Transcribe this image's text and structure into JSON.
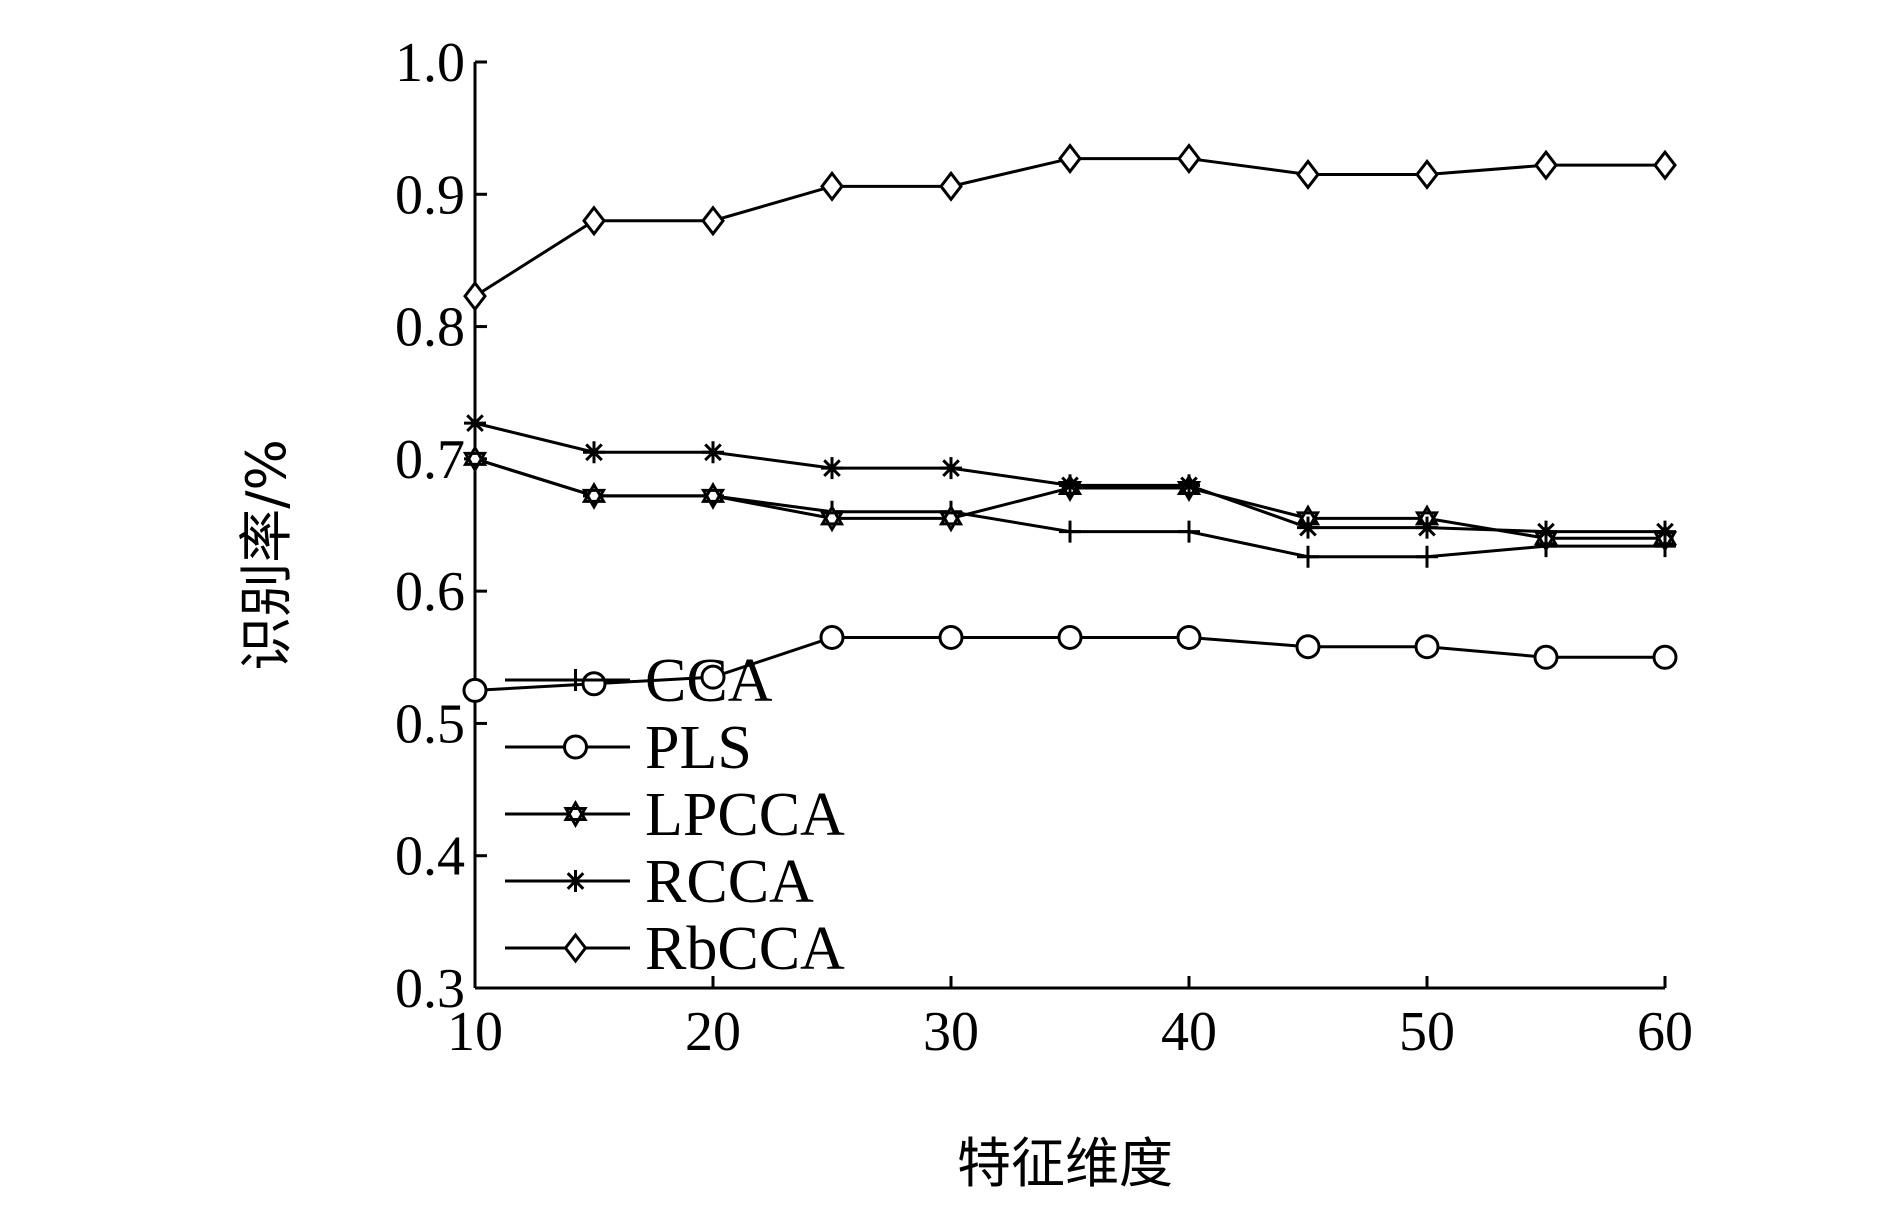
{
  "chart_data": {
    "type": "line",
    "title": "",
    "xlabel": "特征维度",
    "ylabel": "识别率/%",
    "x": [
      10,
      15,
      20,
      25,
      30,
      35,
      40,
      45,
      50,
      55,
      60
    ],
    "xlim": [
      10,
      60
    ],
    "ylim": [
      0.3,
      1.0
    ],
    "xticks": [
      10,
      20,
      30,
      40,
      50,
      60
    ],
    "xtick_labels": [
      "10",
      "20",
      "30",
      "40",
      "50",
      "60"
    ],
    "yticks": [
      0.3,
      0.4,
      0.5,
      0.6,
      0.7,
      0.8,
      0.9,
      1.0
    ],
    "ytick_labels": [
      "0.3",
      "0.4",
      "0.5",
      "0.6",
      "0.7",
      "0.8",
      "0.9",
      "1.0"
    ],
    "grid": false,
    "legend_position": "bottom-left",
    "series": [
      {
        "name": "CCA",
        "marker": "plus",
        "values": [
          0.7,
          0.672,
          0.672,
          0.66,
          0.66,
          0.645,
          0.645,
          0.626,
          0.626,
          0.634,
          0.634
        ]
      },
      {
        "name": "PLS",
        "marker": "circle",
        "values": [
          0.525,
          0.53,
          0.535,
          0.565,
          0.565,
          0.565,
          0.565,
          0.558,
          0.558,
          0.55,
          0.55
        ]
      },
      {
        "name": "LPCCA",
        "marker": "hexagram",
        "values": [
          0.7,
          0.672,
          0.672,
          0.655,
          0.655,
          0.678,
          0.678,
          0.655,
          0.655,
          0.64,
          0.64
        ]
      },
      {
        "name": "RCCA",
        "marker": "asterisk",
        "values": [
          0.727,
          0.705,
          0.705,
          0.693,
          0.693,
          0.68,
          0.68,
          0.648,
          0.648,
          0.645,
          0.645
        ]
      },
      {
        "name": "RbCCA",
        "marker": "diamond",
        "values": [
          0.823,
          0.88,
          0.88,
          0.906,
          0.906,
          0.927,
          0.927,
          0.915,
          0.915,
          0.922,
          0.922
        ]
      }
    ]
  }
}
